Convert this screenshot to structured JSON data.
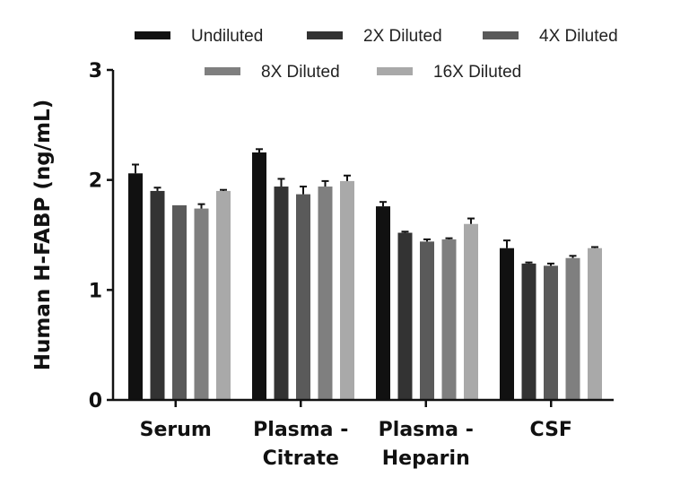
{
  "chart_data": {
    "type": "bar",
    "title": "",
    "xlabel": "",
    "ylabel": "Human H-FABP (ng/mL)",
    "ylim": [
      0,
      3
    ],
    "yticks": [
      "0",
      "1",
      "2",
      "3"
    ],
    "grid": false,
    "legend_position": "top",
    "categories": [
      {
        "lines": [
          "Serum"
        ]
      },
      {
        "lines": [
          "Plasma -",
          "Citrate"
        ]
      },
      {
        "lines": [
          "Plasma -",
          "Heparin"
        ]
      },
      {
        "lines": [
          "CSF"
        ]
      }
    ],
    "series": [
      {
        "name": "Undiluted",
        "color": "#111111",
        "values": [
          2.06,
          2.25,
          1.76,
          1.38
        ],
        "errors": [
          0.08,
          0.03,
          0.04,
          0.07
        ]
      },
      {
        "name": "2X Diluted",
        "color": "#333333",
        "values": [
          1.9,
          1.94,
          1.52,
          1.24
        ],
        "errors": [
          0.03,
          0.07,
          0.01,
          0.01
        ]
      },
      {
        "name": "4X Diluted",
        "color": "#5a5a5a",
        "values": [
          1.77,
          1.87,
          1.44,
          1.22
        ],
        "errors": [
          0.0,
          0.07,
          0.02,
          0.02
        ]
      },
      {
        "name": "8X Diluted",
        "color": "#7f7f7f",
        "values": [
          1.74,
          1.94,
          1.46,
          1.29
        ],
        "errors": [
          0.04,
          0.05,
          0.01,
          0.02
        ]
      },
      {
        "name": "16X Diluted",
        "color": "#a9a9a9",
        "values": [
          1.9,
          1.99,
          1.6,
          1.38
        ],
        "errors": [
          0.01,
          0.05,
          0.05,
          0.01
        ]
      }
    ]
  }
}
